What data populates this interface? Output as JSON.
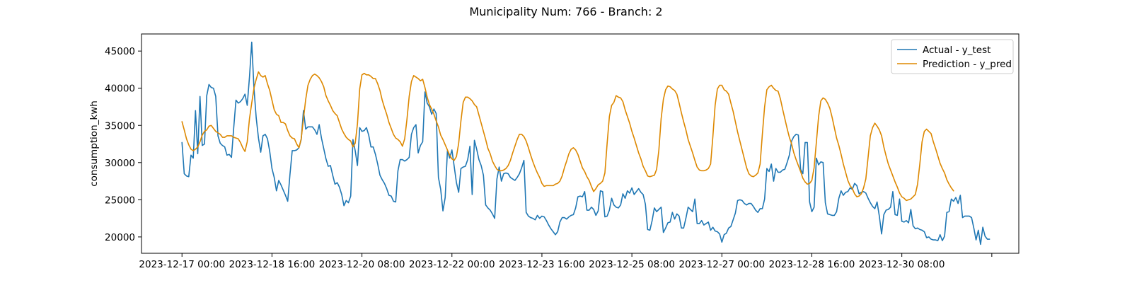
{
  "chart_data": {
    "type": "line",
    "title": "Municipality Num: 766 - Branch: 2",
    "xlabel": "",
    "ylabel": "consumption_kwh",
    "x_start": "2023-12-17 00:00",
    "x_step_hours": 1,
    "x_ticks": [
      "2023-12-17 00:00",
      "2023-12-18 16:00",
      "2023-12-20 08:00",
      "2023-12-22 00:00",
      "2023-12-23 16:00",
      "2023-12-25 08:00",
      "2023-12-27 00:00",
      "2023-12-28 16:00",
      "2023-12-30 08:00",
      "2024-01-01 00:00"
    ],
    "x_tick_labels": [
      "2023-12-17 00:00",
      "2023-12-18 16:00",
      "2023-12-20 08:00",
      "2023-12-22 00:00",
      "2023-12-23 16:00",
      "2023-12-25 08:00",
      "2023-12-27 00:00",
      "2023-12-28 16:00",
      "2023-12-30 08:00",
      ""
    ],
    "xlim": [
      "2023-12-16 06:00",
      "2024-01-01 12:00"
    ],
    "ylim": [
      17800,
      47300
    ],
    "y_ticks": [
      20000,
      25000,
      30000,
      35000,
      40000,
      45000
    ],
    "y_tick_labels": [
      "20000",
      "25000",
      "30000",
      "35000",
      "40000",
      "45000"
    ],
    "grid": false,
    "legend_position": "top-right",
    "series": [
      {
        "name": "Actual - y_test",
        "color": "#1f77b4",
        "values": [
          32700,
          28500,
          28200,
          28100,
          31000,
          30600,
          37000,
          31200,
          38900,
          32300,
          32500,
          39000,
          40500,
          40100,
          40000,
          38900,
          33600,
          32600,
          32300,
          32100,
          31000,
          31100,
          30700,
          34700,
          38400,
          38000,
          38200,
          38600,
          39200,
          37700,
          41500,
          46200,
          40000,
          36000,
          33300,
          31400,
          33600,
          33800,
          33200,
          31500,
          29200,
          28000,
          26200,
          27600,
          27000,
          26300,
          25600,
          24800,
          28400,
          31600,
          31600,
          31700,
          32000,
          33100,
          37000,
          34500,
          34800,
          34800,
          34800,
          34400,
          33800,
          35100,
          33300,
          31900,
          30500,
          29500,
          29600,
          28300,
          27100,
          27300,
          26700,
          25700,
          24200,
          24900,
          24600,
          25500,
          33100,
          31600,
          29600,
          34700,
          34200,
          34300,
          34700,
          33700,
          32100,
          32100,
          31100,
          29800,
          28300,
          27700,
          27200,
          26500,
          25600,
          25500,
          24800,
          24700,
          28900,
          30400,
          30400,
          30200,
          30400,
          30700,
          33800,
          34700,
          35100,
          31300,
          32300,
          32800,
          39500,
          38000,
          37500,
          36500,
          37200,
          36600,
          28000,
          26400,
          23500,
          25300,
          31600,
          30600,
          31700,
          29500,
          27300,
          26000,
          29200,
          29400,
          29500,
          30400,
          32200,
          25700,
          33000,
          31800,
          30400,
          29600,
          28300,
          24300,
          23900,
          23600,
          23100,
          22500,
          27800,
          29400,
          27500,
          28500,
          28600,
          28500,
          28000,
          27800,
          27600,
          28000,
          28500,
          29300,
          30300,
          23300,
          22800,
          22600,
          22500,
          22300,
          22900,
          22500,
          22800,
          22700,
          22200,
          21600,
          21100,
          20700,
          20300,
          20700,
          22000,
          22600,
          22600,
          22400,
          22700,
          22900,
          23000,
          23900,
          25400,
          25500,
          25400,
          26100,
          23600,
          23600,
          24000,
          23700,
          22900,
          23500,
          26200,
          26100,
          22700,
          22800,
          23600,
          25200,
          24300,
          24000,
          23900,
          24300,
          25800,
          25200,
          26200,
          25900,
          26600,
          25700,
          26100,
          26500,
          26000,
          25700,
          24400,
          21000,
          20900,
          22200,
          23900,
          23400,
          23700,
          24000,
          20600,
          21200,
          21900,
          22000,
          23300,
          22400,
          23100,
          22800,
          21200,
          21200,
          22500,
          24000,
          23700,
          23400,
          25100,
          21800,
          21800,
          22200,
          21600,
          21800,
          22000,
          20900,
          21300,
          20800,
          20700,
          20400,
          19300,
          20300,
          20500,
          21200,
          21400,
          22300,
          23200,
          24900,
          25000,
          24900,
          24500,
          24300,
          24500,
          24500,
          24100,
          23600,
          23300,
          23800,
          23800,
          25100,
          29200,
          28800,
          29800,
          27500,
          29200,
          28700,
          28700,
          29000,
          29100,
          30000,
          31000,
          32900,
          33500,
          33800,
          33700,
          29100,
          28500,
          32700,
          32700,
          24700,
          23400,
          24000,
          30600,
          29700,
          30100,
          30000,
          24600,
          23100,
          23000,
          22900,
          22900,
          23400,
          25200,
          26200,
          25600,
          26000,
          26100,
          26600,
          26400,
          27200,
          26900,
          25800,
          26000,
          26100,
          25900,
          25200,
          24600,
          24100,
          23800,
          24700,
          22800,
          20400,
          23000,
          23600,
          23700,
          24000,
          26100,
          23000,
          22900,
          25100,
          22100,
          22000,
          22200,
          21900,
          23700,
          21500,
          21100,
          21200,
          21000,
          20900,
          20700,
          19900,
          20000,
          19700,
          19600,
          19600,
          19500,
          20300,
          19500,
          20100,
          23300,
          23400,
          25100,
          24800,
          25300,
          24500,
          25600,
          22600,
          22800,
          22800,
          22800,
          22600,
          21200,
          19600,
          20900,
          19000,
          21300,
          20100,
          19700,
          19700
        ]
      },
      {
        "name": "Prediction - y_pred",
        "color": "#dd8800",
        "values": [
          35500,
          34400,
          33200,
          32400,
          31800,
          31600,
          31800,
          32100,
          32800,
          33700,
          34200,
          34400,
          34900,
          35000,
          34600,
          34200,
          34000,
          33800,
          33400,
          33400,
          33600,
          33600,
          33600,
          33400,
          33300,
          33200,
          32700,
          32000,
          31500,
          32800,
          35900,
          38000,
          40000,
          41200,
          42200,
          41700,
          41500,
          41700,
          40600,
          39700,
          38400,
          37100,
          36500,
          36300,
          35400,
          35400,
          35200,
          34300,
          33600,
          33300,
          33200,
          32500,
          32000,
          33200,
          35900,
          38500,
          40400,
          41200,
          41700,
          41900,
          41700,
          41400,
          40900,
          40200,
          39000,
          38300,
          37700,
          37000,
          36600,
          36300,
          35400,
          34500,
          33900,
          33400,
          33100,
          32900,
          32100,
          32600,
          35200,
          39900,
          41800,
          42000,
          41800,
          41800,
          41600,
          41300,
          41300,
          40600,
          39700,
          38400,
          37400,
          36500,
          35400,
          34600,
          33800,
          33300,
          33100,
          32800,
          32200,
          33200,
          35800,
          38900,
          40900,
          41700,
          41500,
          41300,
          41000,
          41200,
          40100,
          38800,
          37800,
          37200,
          36500,
          35600,
          34800,
          33700,
          33100,
          32400,
          31700,
          31000,
          30500,
          30300,
          30800,
          32600,
          35600,
          38100,
          38800,
          38800,
          38600,
          38300,
          37800,
          37500,
          36400,
          35300,
          34200,
          33100,
          31900,
          31200,
          30200,
          29600,
          29100,
          28900,
          28900,
          29000,
          29200,
          29600,
          30300,
          31300,
          32200,
          33100,
          33800,
          33800,
          33500,
          32900,
          32000,
          31000,
          30100,
          29300,
          28600,
          28000,
          27200,
          26800,
          26900,
          26900,
          26900,
          26900,
          27100,
          27200,
          27500,
          28200,
          29300,
          30200,
          31200,
          31800,
          32000,
          31700,
          31100,
          30200,
          29300,
          28800,
          28100,
          27600,
          26800,
          26100,
          26500,
          27000,
          27200,
          27500,
          28600,
          32600,
          36200,
          37700,
          38100,
          39000,
          38800,
          38700,
          38200,
          37100,
          36200,
          35300,
          34200,
          33300,
          32300,
          31300,
          30500,
          29500,
          28900,
          28200,
          28100,
          28200,
          28300,
          29100,
          31700,
          35900,
          38500,
          39800,
          40300,
          40200,
          39900,
          39700,
          39200,
          38000,
          36700,
          35500,
          34400,
          33100,
          32200,
          31300,
          30300,
          29400,
          29000,
          28900,
          28900,
          29000,
          29200,
          29800,
          33500,
          37700,
          39900,
          40400,
          40400,
          39800,
          39600,
          39200,
          38000,
          36900,
          35500,
          34100,
          32900,
          31700,
          30500,
          29300,
          28500,
          28200,
          28100,
          28300,
          28600,
          29800,
          33800,
          37500,
          39800,
          40200,
          40400,
          40000,
          39700,
          39600,
          38600,
          37200,
          35900,
          34600,
          33400,
          32500,
          31300,
          30400,
          29600,
          28800,
          27900,
          27400,
          27100,
          27200,
          27600,
          29300,
          32700,
          36200,
          38300,
          38700,
          38500,
          38000,
          37300,
          36100,
          34700,
          33300,
          32300,
          31100,
          29800,
          28700,
          27600,
          26900,
          26500,
          25800,
          25400,
          25500,
          25800,
          26600,
          27800,
          30700,
          33600,
          34700,
          35300,
          34900,
          34400,
          33600,
          32100,
          30900,
          29800,
          29000,
          28200,
          27400,
          26700,
          25900,
          25400,
          25200,
          24900,
          25000,
          25100,
          25400,
          25700,
          27100,
          29800,
          32800,
          34200,
          34500,
          34200,
          33900,
          32800,
          31900,
          30900,
          29900,
          29200,
          28600,
          27700,
          27100,
          26600,
          26200
        ]
      }
    ]
  }
}
